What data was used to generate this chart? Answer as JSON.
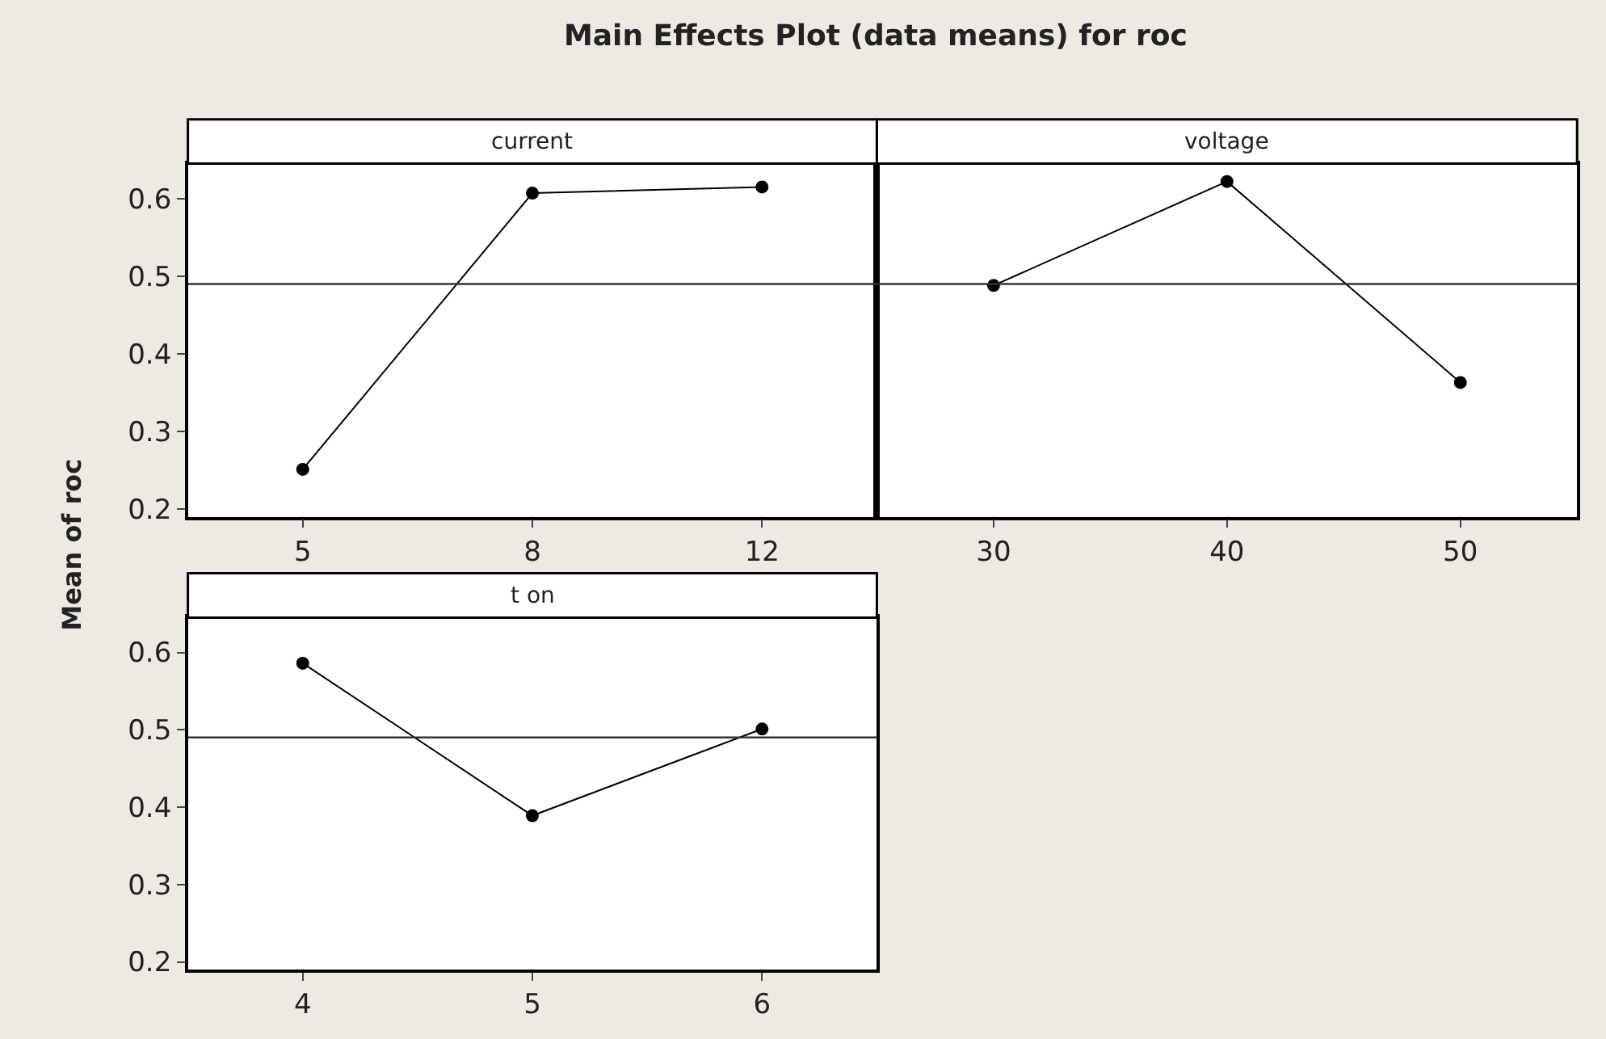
{
  "chart_data": [
    {
      "type": "line",
      "title": "Main Effects Plot (data means) for roc",
      "ylabel": "Mean of roc",
      "xlabel": "current",
      "categories": [
        "5",
        "8",
        "12"
      ],
      "series": [
        {
          "color": "#000000",
          "values": [
            0.251,
            0.607,
            0.615
          ]
        }
      ],
      "ylim": [
        0.19,
        0.645
      ],
      "yticks": [
        0.2,
        0.3,
        0.4,
        0.5,
        0.6
      ],
      "ref_lines": [
        {
          "axis": "y",
          "value": 0.49
        }
      ],
      "marker": "circle"
    },
    {
      "type": "line",
      "xlabel": "voltage",
      "categories": [
        "30",
        "40",
        "50"
      ],
      "series": [
        {
          "color": "#000000",
          "values": [
            0.488,
            0.622,
            0.363
          ]
        }
      ],
      "ylim": [
        0.19,
        0.645
      ],
      "yticks": [
        0.2,
        0.3,
        0.4,
        0.5,
        0.6
      ],
      "ref_lines": [
        {
          "axis": "y",
          "value": 0.49
        }
      ],
      "marker": "circle",
      "tick_labels": "x"
    },
    {
      "type": "line",
      "xlabel": "t on",
      "categories": [
        "4",
        "5",
        "6"
      ],
      "series": [
        {
          "color": "#000000",
          "values": [
            0.586,
            0.389,
            0.501
          ]
        }
      ],
      "ylim": [
        0.19,
        0.645
      ],
      "yticks": [
        0.2,
        0.3,
        0.4,
        0.5,
        0.6
      ],
      "ref_lines": [
        {
          "axis": "y",
          "value": 0.49
        }
      ],
      "marker": "circle"
    }
  ]
}
